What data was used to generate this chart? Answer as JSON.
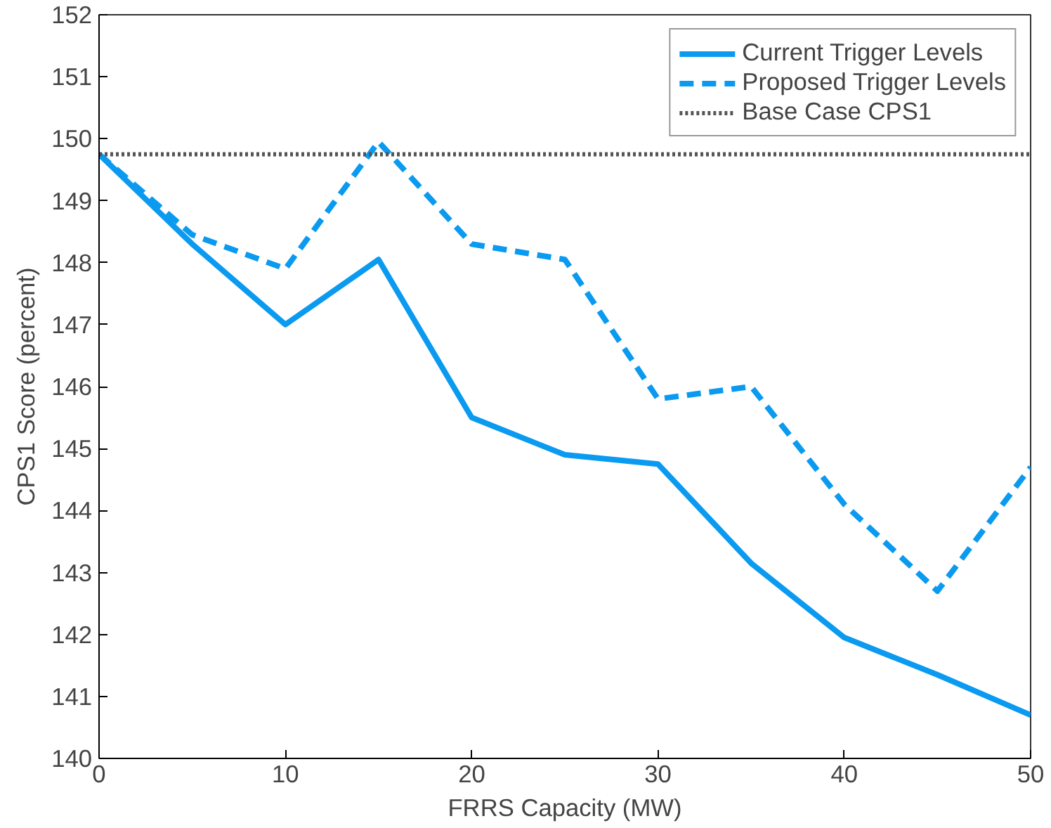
{
  "chart_data": {
    "type": "line",
    "xlabel": "FRRS Capacity (MW)",
    "ylabel": "CPS1 Score (percent)",
    "x": [
      0,
      5,
      10,
      15,
      20,
      25,
      30,
      35,
      40,
      45,
      50
    ],
    "series": [
      {
        "name": "Current Trigger Levels",
        "color": "#0a9af0",
        "line_style": "solid",
        "values": [
          149.75,
          148.3,
          147.0,
          148.05,
          145.5,
          144.9,
          144.75,
          143.15,
          141.95,
          141.35,
          140.7
        ]
      },
      {
        "name": "Proposed Trigger Levels",
        "color": "#0a9af0",
        "line_style": "dashed",
        "values": [
          149.75,
          148.45,
          147.9,
          149.95,
          148.3,
          148.05,
          145.8,
          146.0,
          144.1,
          142.7,
          144.7
        ]
      }
    ],
    "ref_lines": [
      {
        "axis": "y",
        "value": 149.75,
        "label": "Base Case CPS1",
        "color": "#555555",
        "line_style": "dotted"
      }
    ],
    "xlim": [
      0,
      50
    ],
    "xticks": [
      0,
      10,
      20,
      30,
      40,
      50
    ],
    "ylim": [
      140,
      152
    ],
    "yticks": [
      140,
      141,
      142,
      143,
      144,
      145,
      146,
      147,
      148,
      149,
      150,
      151,
      152
    ],
    "grid": false,
    "legend": "top right",
    "marker": "none"
  }
}
